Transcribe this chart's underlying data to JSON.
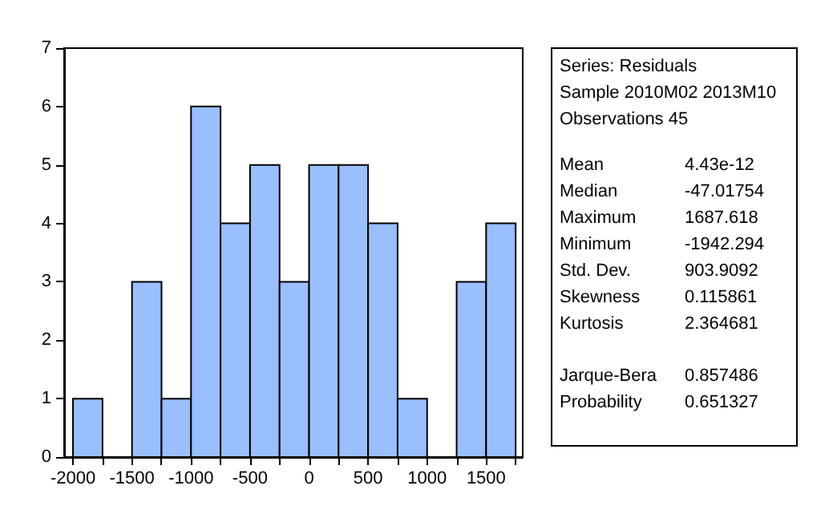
{
  "chart_data": {
    "type": "histogram",
    "bins": [
      -2000,
      -1750,
      -1500,
      -1250,
      -1000,
      -750,
      -500,
      -250,
      0,
      250,
      500,
      750,
      1000,
      1250,
      1500,
      1750
    ],
    "values": [
      1,
      0,
      3,
      1,
      6,
      4,
      5,
      3,
      5,
      5,
      4,
      1,
      0,
      3,
      4
    ],
    "color": "#99bfff",
    "xlim": [
      -2075,
      1810
    ],
    "xticks": [
      -2000,
      {
        "value": -1750,
        "label": null
      },
      -1500,
      {
        "value": -1250,
        "label": null
      },
      -1000,
      {
        "value": -750,
        "label": null
      },
      -500,
      {
        "value": -250,
        "label": null
      },
      0,
      {
        "value": 250,
        "label": null
      },
      500,
      {
        "value": 750,
        "label": null
      },
      1000,
      {
        "value": 1250,
        "label": null
      },
      1500,
      {
        "value": 1750,
        "label": null
      }
    ],
    "ylim": [
      0,
      7
    ],
    "yticks": [
      0,
      1,
      2,
      3,
      4,
      5,
      6,
      7
    ],
    "grid": false,
    "annotations": [
      "Series: Residuals",
      "Sample 2010M02 2013M10",
      "Observations 45",
      "Mean",
      "4.43e-12",
      "Median",
      "-47.01754",
      "Maximum",
      "1687.618",
      "Minimum",
      "-1942.294",
      "Std. Dev.",
      "903.9092",
      "Skewness",
      "0.115861",
      "Kurtosis",
      "2.364681",
      "Jarque-Bera",
      "0.857486",
      "Probability",
      "0.651327"
    ]
  }
}
